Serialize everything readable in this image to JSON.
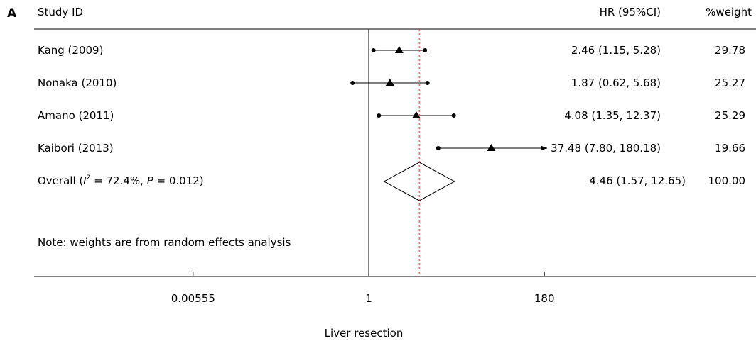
{
  "chart_data": {
    "type": "forest",
    "panel_label": "A",
    "headers": {
      "study": "Study ID",
      "effect": "HR (95%CI)",
      "weight": "%weight"
    },
    "studies": [
      {
        "label": "Kang (2009)",
        "hr": 2.46,
        "lo": 1.15,
        "hi": 5.28,
        "display": "2.46 (1.15, 5.28)",
        "weight": "29.78",
        "arrow_right": false
      },
      {
        "label": "Nonaka (2010)",
        "hr": 1.87,
        "lo": 0.62,
        "hi": 5.68,
        "display": "1.87 (0.62, 5.68)",
        "weight": "25.27",
        "arrow_right": false
      },
      {
        "label": "Amano (2011)",
        "hr": 4.08,
        "lo": 1.35,
        "hi": 12.37,
        "display": "4.08 (1.35, 12.37)",
        "weight": "25.29",
        "arrow_right": false
      },
      {
        "label": "Kaibori (2013)",
        "hr": 37.48,
        "lo": 7.8,
        "hi": 180.18,
        "display": "37.48 (7.80, 180.18)",
        "weight": "19.66",
        "arrow_right": true
      }
    ],
    "overall": {
      "label_prefix": "Overall (",
      "i_symbol": "I",
      "sup": "2",
      "label_mid": " = 72.4%, ",
      "p_symbol": "P",
      "label_suffix": " = 0.012)",
      "hr": 4.46,
      "lo": 1.57,
      "hi": 12.65,
      "display": "4.46 (1.57, 12.65)",
      "weight": "100.00"
    },
    "note": "Note: weights are from random effects analysis",
    "x_axis": {
      "scale": "log",
      "range": [
        0.00555,
        180
      ],
      "ticks": [
        {
          "value": 0.00555,
          "label": "0.00555"
        },
        {
          "value": 1,
          "label": "1"
        },
        {
          "value": 180,
          "label": "180"
        }
      ],
      "label": "Liver resection"
    },
    "null_line": 1,
    "overall_line": 4.46
  }
}
